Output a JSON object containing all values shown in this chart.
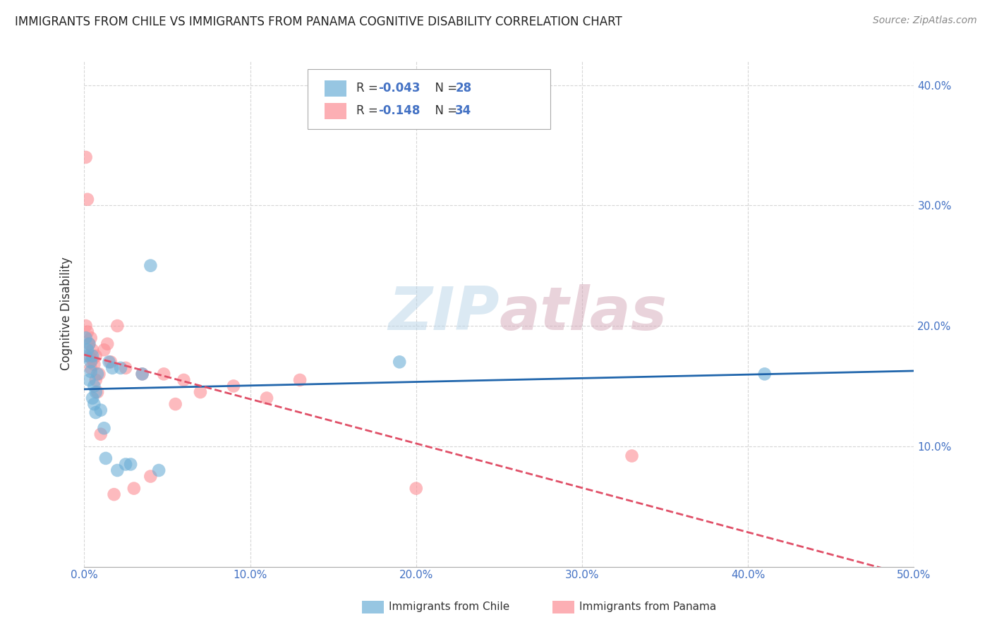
{
  "title": "IMMIGRANTS FROM CHILE VS IMMIGRANTS FROM PANAMA COGNITIVE DISABILITY CORRELATION CHART",
  "source": "Source: ZipAtlas.com",
  "ylabel": "Cognitive Disability",
  "xlim": [
    0.0,
    0.5
  ],
  "ylim": [
    0.0,
    0.42
  ],
  "xticks": [
    0.0,
    0.1,
    0.2,
    0.3,
    0.4,
    0.5
  ],
  "yticks": [
    0.1,
    0.2,
    0.3,
    0.4
  ],
  "xtick_labels": [
    "0.0%",
    "10.0%",
    "20.0%",
    "30.0%",
    "40.0%",
    "50.0%"
  ],
  "ytick_labels": [
    "10.0%",
    "20.0%",
    "30.0%",
    "40.0%"
  ],
  "chile_color": "#6baed6",
  "panama_color": "#fc8d94",
  "chile_R": -0.043,
  "chile_N": 28,
  "panama_R": -0.148,
  "panama_N": 34,
  "chile_line_color": "#2166ac",
  "panama_line_color": "#e05068",
  "watermark_zip": "ZIP",
  "watermark_atlas": "atlas",
  "chile_x": [
    0.001,
    0.001,
    0.002,
    0.003,
    0.003,
    0.004,
    0.004,
    0.005,
    0.005,
    0.006,
    0.006,
    0.007,
    0.007,
    0.008,
    0.01,
    0.012,
    0.013,
    0.015,
    0.017,
    0.02,
    0.022,
    0.025,
    0.028,
    0.035,
    0.04,
    0.045,
    0.19,
    0.41
  ],
  "chile_y": [
    0.19,
    0.175,
    0.18,
    0.185,
    0.155,
    0.162,
    0.17,
    0.175,
    0.14,
    0.15,
    0.135,
    0.145,
    0.128,
    0.16,
    0.13,
    0.115,
    0.09,
    0.17,
    0.165,
    0.08,
    0.165,
    0.085,
    0.085,
    0.16,
    0.25,
    0.08,
    0.17,
    0.16
  ],
  "panama_x": [
    0.001,
    0.001,
    0.002,
    0.002,
    0.003,
    0.003,
    0.004,
    0.004,
    0.005,
    0.005,
    0.006,
    0.007,
    0.007,
    0.008,
    0.009,
    0.01,
    0.012,
    0.014,
    0.016,
    0.018,
    0.02,
    0.025,
    0.03,
    0.035,
    0.04,
    0.048,
    0.055,
    0.06,
    0.07,
    0.09,
    0.11,
    0.13,
    0.2,
    0.33
  ],
  "panama_y": [
    0.34,
    0.2,
    0.305,
    0.195,
    0.185,
    0.175,
    0.19,
    0.165,
    0.18,
    0.172,
    0.168,
    0.155,
    0.175,
    0.145,
    0.16,
    0.11,
    0.18,
    0.185,
    0.17,
    0.06,
    0.2,
    0.165,
    0.065,
    0.16,
    0.075,
    0.16,
    0.135,
    0.155,
    0.145,
    0.15,
    0.14,
    0.155,
    0.065,
    0.092
  ],
  "background_color": "#ffffff",
  "grid_color": "#cccccc",
  "tick_color": "#4472c4",
  "title_fontsize": 12,
  "tick_fontsize": 11,
  "scatter_size": 180,
  "scatter_alpha": 0.6
}
